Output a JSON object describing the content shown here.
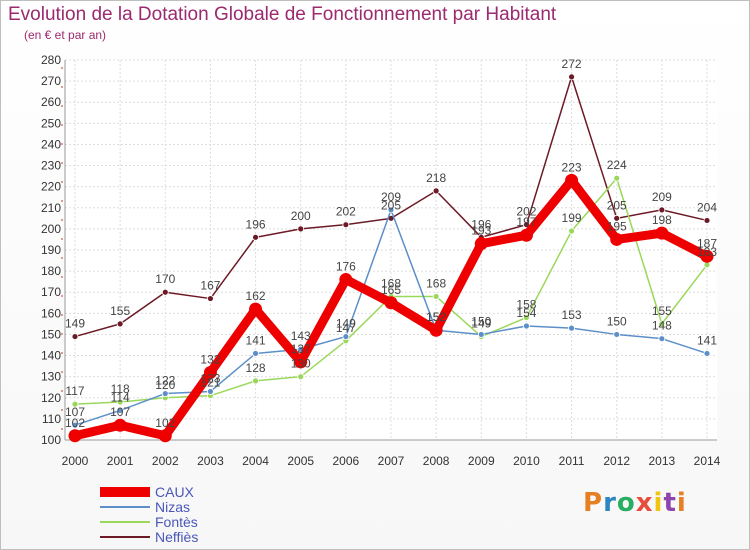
{
  "header": {
    "title": "Evolution de la Dotation Globale de Fonctionnement par Habitant",
    "subtitle": "(en € et par an)"
  },
  "logo": {
    "text": "Proxiti",
    "colors": [
      "#e67e22",
      "#2e86c1",
      "#27ae60",
      "#e74c3c",
      "#f1c40f",
      "#8e44ad",
      "#e67e22"
    ]
  },
  "chart_data": {
    "type": "line",
    "title": "Evolution de la Dotation Globale de Fonctionnement par Habitant",
    "subtitle": "(en € et par an)",
    "x": [
      "2000",
      "2001",
      "2002",
      "2003",
      "2004",
      "2005",
      "2006",
      "2007",
      "2008",
      "2009",
      "2010",
      "2011",
      "2012",
      "2013",
      "2014"
    ],
    "ylim": [
      100,
      280
    ],
    "yticks": [
      100,
      110,
      120,
      130,
      140,
      150,
      160,
      170,
      180,
      190,
      200,
      210,
      220,
      230,
      240,
      250,
      260,
      270,
      280
    ],
    "grid": true,
    "legend_position": "bottom-left",
    "series": [
      {
        "name": "Neffiès",
        "color": "#6b1a26",
        "values": [
          149,
          155,
          170,
          167,
          196,
          200,
          202,
          205,
          218,
          196,
          202,
          272,
          205,
          209,
          204
        ]
      },
      {
        "name": "Fontès",
        "color": "#9ad85a",
        "values": [
          117,
          118,
          120,
          121,
          128,
          130,
          147,
          168,
          168,
          149,
          158,
          199,
          224,
          155,
          183
        ]
      },
      {
        "name": "Nizas",
        "color": "#5c8fc9",
        "values": [
          107,
          114,
          122,
          123,
          141,
          143,
          149,
          209,
          152,
          150,
          154,
          153,
          150,
          148,
          141
        ]
      },
      {
        "name": "CAUX",
        "color": "#ee0000",
        "values": [
          102,
          107,
          102,
          132,
          162,
          137,
          176,
          165,
          152,
          193,
          197,
          223,
          195,
          198,
          187
        ]
      }
    ]
  }
}
